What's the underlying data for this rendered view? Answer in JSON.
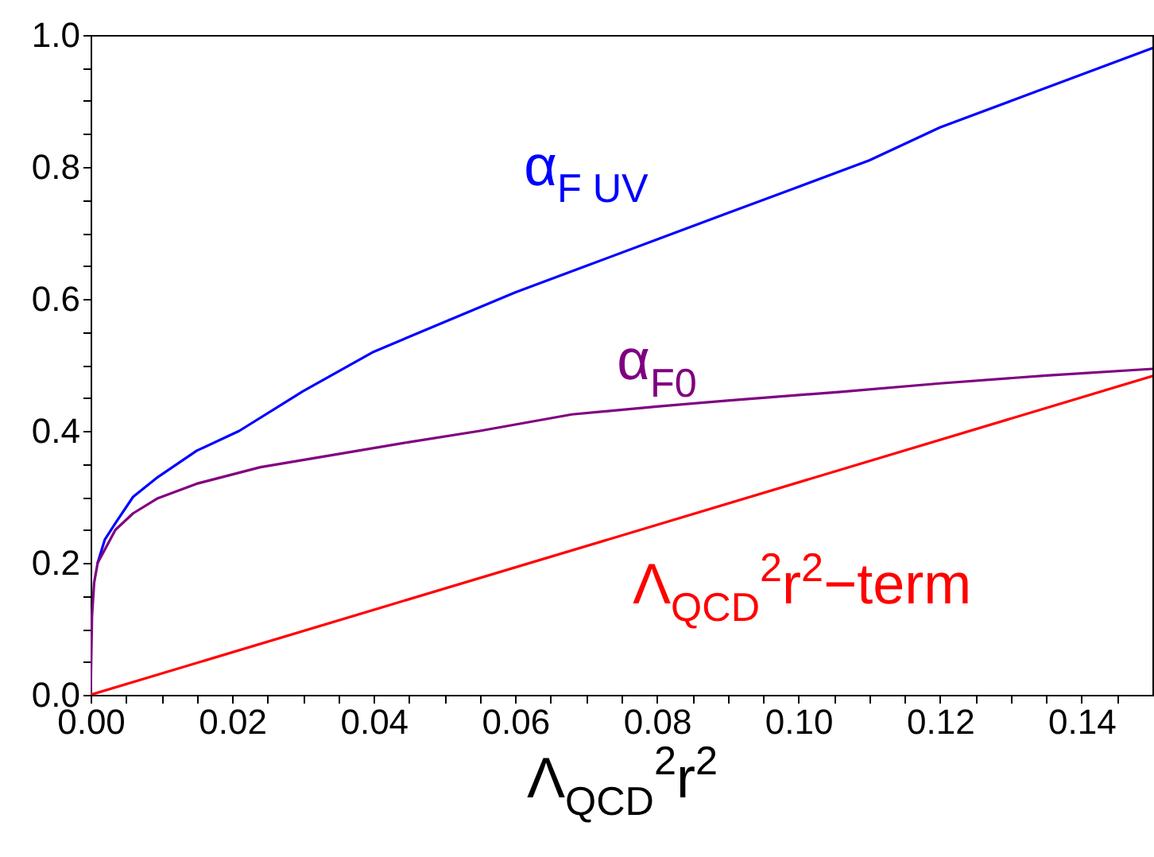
{
  "chart_data": {
    "type": "line",
    "xlabel": "Λ$_{QCD}$$^{2}$r$^{2}$",
    "xlim": [
      0,
      0.15
    ],
    "ylim": [
      0,
      1.0
    ],
    "xticks": [
      {
        "value": 0,
        "label": "0.00"
      },
      {
        "value": 0.005,
        "label": null
      },
      {
        "value": 0.01,
        "label": null
      },
      {
        "value": 0.015,
        "label": null
      },
      {
        "value": 0.02,
        "label": "0.02"
      },
      {
        "value": 0.025,
        "label": null
      },
      {
        "value": 0.03,
        "label": null
      },
      {
        "value": 0.035,
        "label": null
      },
      {
        "value": 0.04,
        "label": "0.04"
      },
      {
        "value": 0.045,
        "label": null
      },
      {
        "value": 0.05,
        "label": null
      },
      {
        "value": 0.055,
        "label": null
      },
      {
        "value": 0.06,
        "label": "0.06"
      },
      {
        "value": 0.065,
        "label": null
      },
      {
        "value": 0.07,
        "label": null
      },
      {
        "value": 0.075,
        "label": null
      },
      {
        "value": 0.08,
        "label": "0.08"
      },
      {
        "value": 0.085,
        "label": null
      },
      {
        "value": 0.09,
        "label": null
      },
      {
        "value": 0.095,
        "label": null
      },
      {
        "value": 0.1,
        "label": "0.10"
      },
      {
        "value": 0.105,
        "label": null
      },
      {
        "value": 0.11,
        "label": null
      },
      {
        "value": 0.115,
        "label": null
      },
      {
        "value": 0.12,
        "label": "0.12"
      },
      {
        "value": 0.125,
        "label": null
      },
      {
        "value": 0.13,
        "label": null
      },
      {
        "value": 0.135,
        "label": null
      },
      {
        "value": 0.14,
        "label": "0.14"
      },
      {
        "value": 0.145,
        "label": null
      }
    ],
    "yticks": [
      {
        "value": 0,
        "label": "0.0"
      },
      {
        "value": 0.05,
        "label": null
      },
      {
        "value": 0.1,
        "label": null
      },
      {
        "value": 0.15,
        "label": null
      },
      {
        "value": 0.2,
        "label": "0.2"
      },
      {
        "value": 0.25,
        "label": null
      },
      {
        "value": 0.3,
        "label": null
      },
      {
        "value": 0.35,
        "label": null
      },
      {
        "value": 0.4,
        "label": "0.4"
      },
      {
        "value": 0.45,
        "label": null
      },
      {
        "value": 0.5,
        "label": null
      },
      {
        "value": 0.55,
        "label": null
      },
      {
        "value": 0.6,
        "label": "0.6"
      },
      {
        "value": 0.65,
        "label": null
      },
      {
        "value": 0.7,
        "label": null
      },
      {
        "value": 0.75,
        "label": null
      },
      {
        "value": 0.8,
        "label": "0.8"
      },
      {
        "value": 0.85,
        "label": null
      },
      {
        "value": 0.9,
        "label": null
      },
      {
        "value": 0.95,
        "label": null
      },
      {
        "value": 1.0,
        "label": "1.0"
      }
    ],
    "grid": false,
    "legend": false,
    "marker": "none",
    "line_style": "solid",
    "series": [
      {
        "name": "α$_{F UV}$",
        "color": "#0000ff",
        "x": [
          0.001,
          0.002,
          0.0035,
          0.006,
          0.0095,
          0.015,
          0.021,
          0.03,
          0.04,
          0.05,
          0.06,
          0.07,
          0.08,
          0.09,
          0.1,
          0.11,
          0.12,
          0.13,
          0.14,
          0.15
        ],
        "values": [
          0.2,
          0.235,
          0.26,
          0.3,
          0.33,
          0.37,
          0.4,
          0.46,
          0.52,
          0.565,
          0.61,
          0.65,
          0.69,
          0.73,
          0.77,
          0.81,
          0.86,
          0.9,
          0.94,
          0.98
        ]
      },
      {
        "name": "α$_{F0}$",
        "color": "#800080",
        "x": [
          0,
          0.0002,
          0.0005,
          0.001,
          0.002,
          0.0035,
          0.006,
          0.0095,
          0.015,
          0.024,
          0.035,
          0.045,
          0.055,
          0.068,
          0.08,
          0.09,
          0.1057,
          0.12,
          0.135,
          0.15
        ],
        "values": [
          0,
          0.12,
          0.17,
          0.2,
          0.22,
          0.25,
          0.275,
          0.298,
          0.32,
          0.345,
          0.365,
          0.383,
          0.4,
          0.425,
          0.437,
          0.446,
          0.459,
          0.472,
          0.484,
          0.494
        ]
      },
      {
        "name": "Λ$_{QCD}$$^{2}$r$^{2}$−term",
        "color": "#ff0000",
        "x": [
          0,
          0.15
        ],
        "values": [
          0,
          0.483
        ]
      }
    ]
  }
}
